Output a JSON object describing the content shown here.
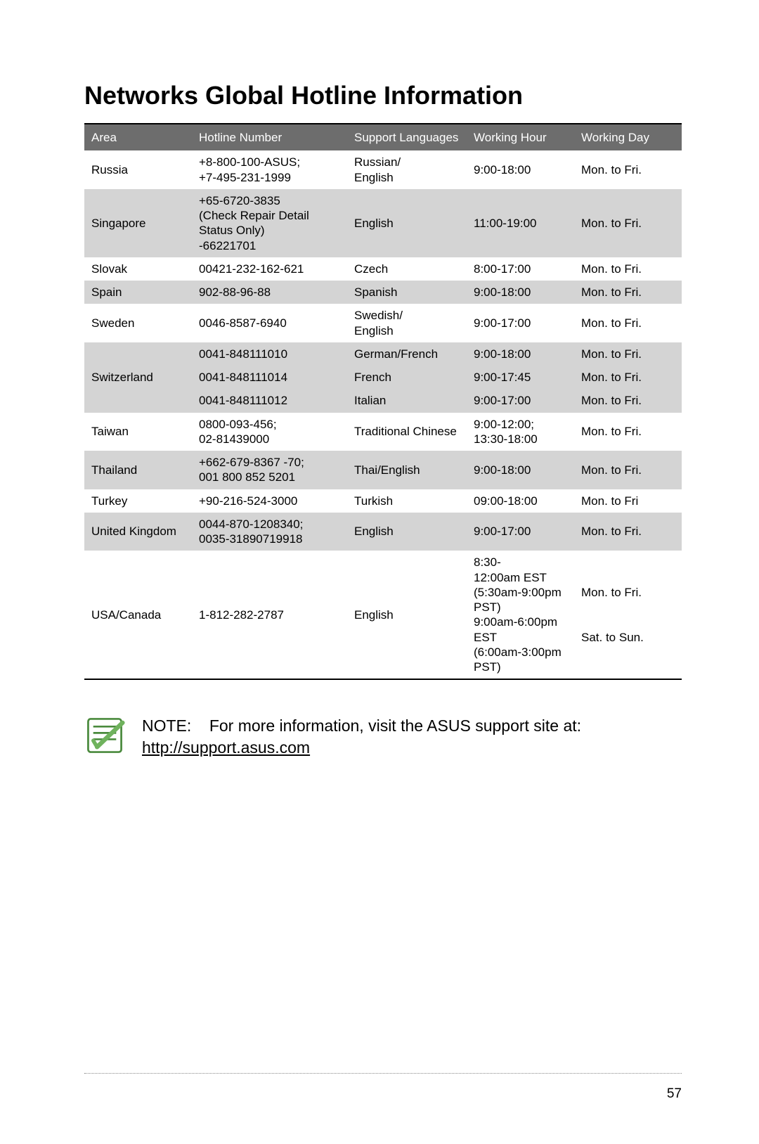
{
  "title": "Networks Global Hotline Information",
  "columns": {
    "area": "Area",
    "hotline": "Hotline Number",
    "languages": "Support Languages",
    "hour": "Working Hour",
    "day": "Working Day"
  },
  "rows": [
    {
      "area": "Russia",
      "hotline": "+8-800-100-ASUS;\n+7-495-231-1999",
      "lang": "Russian/\nEnglish",
      "hour": "9:00-18:00",
      "day": "Mon. to Fri.",
      "alt": false,
      "show_area": true
    },
    {
      "area": "Singapore",
      "hotline": "+65-6720-3835\n(Check Repair Detail Status Only)\n-66221701",
      "lang": "English",
      "hour": "11:00-19:00",
      "day": "Mon. to Fri.",
      "alt": true,
      "show_area": true
    },
    {
      "area": "Slovak",
      "hotline": "00421-232-162-621",
      "lang": "Czech",
      "hour": "8:00-17:00",
      "day": "Mon. to Fri.",
      "alt": false,
      "show_area": true
    },
    {
      "area": "Spain",
      "hotline": "902-88-96-88",
      "lang": "Spanish",
      "hour": "9:00-18:00",
      "day": "Mon. to Fri.",
      "alt": true,
      "show_area": true
    },
    {
      "area": "Sweden",
      "hotline": "0046-8587-6940",
      "lang": "Swedish/\nEnglish",
      "hour": "9:00-17:00",
      "day": "Mon. to Fri.",
      "alt": false,
      "show_area": true
    },
    {
      "area": "",
      "hotline": "0041-848111010",
      "lang": "German/French",
      "hour": "9:00-18:00",
      "day": "Mon. to Fri.",
      "alt": true,
      "show_area": false
    },
    {
      "area": "Switzerland",
      "hotline": "0041-848111014",
      "lang": "French",
      "hour": "9:00-17:45",
      "day": "Mon. to Fri.",
      "alt": true,
      "show_area": true
    },
    {
      "area": "",
      "hotline": "0041-848111012",
      "lang": "Italian",
      "hour": "9:00-17:00",
      "day": "Mon. to Fri.",
      "alt": true,
      "show_area": false
    },
    {
      "area": "Taiwan",
      "hotline": "0800-093-456;\n02-81439000",
      "lang": "Traditional Chinese",
      "hour": "9:00-12:00;\n13:30-18:00",
      "day": "Mon. to Fri.",
      "alt": false,
      "show_area": true
    },
    {
      "area": "Thailand",
      "hotline": "+662-679-8367 -70;\n001 800 852 5201",
      "lang": "Thai/English",
      "hour": "9:00-18:00",
      "day": "Mon. to Fri.",
      "alt": true,
      "show_area": true
    },
    {
      "area": "Turkey",
      "hotline": "+90-216-524-3000",
      "lang": "Turkish",
      "hour": "09:00-18:00",
      "day": "Mon. to Fri",
      "alt": false,
      "show_area": true
    },
    {
      "area": "United Kingdom",
      "hotline": "0044-870-1208340;\n0035-31890719918",
      "lang": "English",
      "hour": "9:00-17:00",
      "day": "Mon. to Fri.",
      "alt": true,
      "show_area": true
    },
    {
      "area": "USA/Canada",
      "hotline": "1-812-282-2787",
      "lang": "English",
      "hour": "8:30-\n12:00am EST\n(5:30am-9:00pm PST)\n9:00am-6:00pm EST\n(6:00am-3:00pm PST)",
      "day": "Mon. to Fri.\n\n\nSat. to Sun.",
      "alt": false,
      "show_area": true,
      "last": true
    }
  ],
  "note": {
    "label": "NOTE:",
    "text": "For more information, visit the ASUS support site at:",
    "link": "http://support.asus.com"
  },
  "page_number": "57",
  "colors": {
    "header_bg": "#6d6d6d",
    "header_fg": "#ffffff",
    "alt_row_bg": "#d4d4d4",
    "icon_stroke": "#4a8a3d",
    "icon_fill": "#6fb25d"
  }
}
